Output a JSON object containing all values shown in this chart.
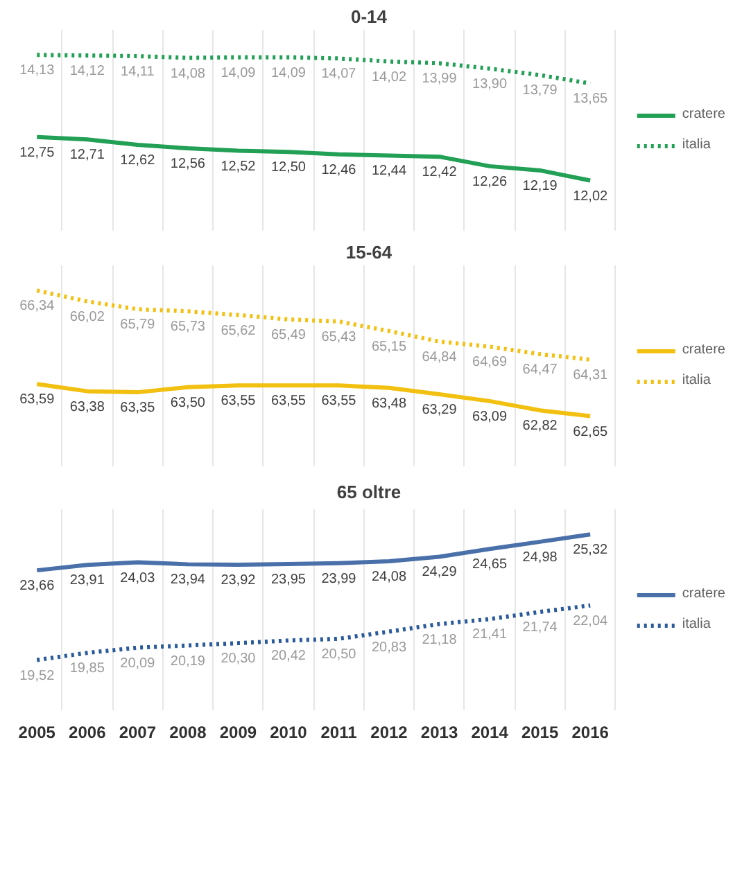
{
  "chart_data": [
    {
      "type": "line",
      "title": "0-14",
      "categories": [
        "2005",
        "2006",
        "2007",
        "2008",
        "2009",
        "2010",
        "2011",
        "2012",
        "2013",
        "2014",
        "2015",
        "2016"
      ],
      "legend": "right",
      "grid": "x",
      "tick_labels": false,
      "series": [
        {
          "name": "cratere",
          "color": "#22a055",
          "line_style": "solid",
          "values": [
            12.75,
            12.71,
            12.62,
            12.56,
            12.52,
            12.5,
            12.46,
            12.44,
            12.42,
            12.26,
            12.19,
            12.02
          ],
          "value_labels": [
            "12,75",
            "12,71",
            "12,62",
            "12,56",
            "12,52",
            "12,50",
            "12,46",
            "12,44",
            "12,42",
            "12,26",
            "12,19",
            "12,02"
          ]
        },
        {
          "name": "italia",
          "color": "#22a055",
          "line_style": "dotted",
          "values": [
            14.13,
            14.12,
            14.11,
            14.08,
            14.09,
            14.09,
            14.07,
            14.02,
            13.99,
            13.9,
            13.79,
            13.65
          ],
          "value_labels": [
            "14,13",
            "14,12",
            "14,11",
            "14,08",
            "14,09",
            "14,09",
            "14,07",
            "14,02",
            "13,99",
            "13,90",
            "13,79",
            "13,65"
          ]
        }
      ]
    },
    {
      "type": "line",
      "title": "15-64",
      "categories": [
        "2005",
        "2006",
        "2007",
        "2008",
        "2009",
        "2010",
        "2011",
        "2012",
        "2013",
        "2014",
        "2015",
        "2016"
      ],
      "legend": "right",
      "grid": "x",
      "tick_labels": false,
      "series": [
        {
          "name": "cratere",
          "color": "#f2c010",
          "line_style": "solid",
          "values": [
            63.59,
            63.38,
            63.35,
            63.5,
            63.55,
            63.55,
            63.55,
            63.48,
            63.29,
            63.09,
            62.82,
            62.65
          ],
          "value_labels": [
            "63,59",
            "63,38",
            "63,35",
            "63,50",
            "63,55",
            "63,55",
            "63,55",
            "63,48",
            "63,29",
            "63,09",
            "62,82",
            "62,65"
          ]
        },
        {
          "name": "italia",
          "color": "#f2c010",
          "line_style": "dotted",
          "values": [
            66.34,
            66.02,
            65.79,
            65.73,
            65.62,
            65.49,
            65.43,
            65.15,
            64.84,
            64.69,
            64.47,
            64.31
          ],
          "value_labels": [
            "66,34",
            "66,02",
            "65,79",
            "65,73",
            "65,62",
            "65,49",
            "65,43",
            "65,15",
            "64,84",
            "64,69",
            "64,47",
            "64,31"
          ]
        }
      ]
    },
    {
      "type": "line",
      "title": "65 oltre",
      "categories": [
        "2005",
        "2006",
        "2007",
        "2008",
        "2009",
        "2010",
        "2011",
        "2012",
        "2013",
        "2014",
        "2015",
        "2016"
      ],
      "legend": "right",
      "grid": "x",
      "tick_labels": "x",
      "series": [
        {
          "name": "cratere",
          "color": "#4a70aa",
          "line_style": "solid",
          "values": [
            23.66,
            23.91,
            24.03,
            23.94,
            23.92,
            23.95,
            23.99,
            24.08,
            24.29,
            24.65,
            24.98,
            25.32
          ],
          "value_labels": [
            "23,66",
            "23,91",
            "24,03",
            "23,94",
            "23,92",
            "23,95",
            "23,99",
            "24,08",
            "24,29",
            "24,65",
            "24,98",
            "25,32"
          ]
        },
        {
          "name": "italia",
          "color": "#2a5a9a",
          "line_style": "dotted",
          "values": [
            19.52,
            19.85,
            20.09,
            20.19,
            20.3,
            20.42,
            20.5,
            20.83,
            21.18,
            21.41,
            21.74,
            22.04
          ],
          "value_labels": [
            "19,52",
            "19,85",
            "20,09",
            "20,19",
            "20,30",
            "20,42",
            "20,50",
            "20,83",
            "21,18",
            "21,41",
            "21,74",
            "22,04"
          ]
        }
      ]
    }
  ]
}
